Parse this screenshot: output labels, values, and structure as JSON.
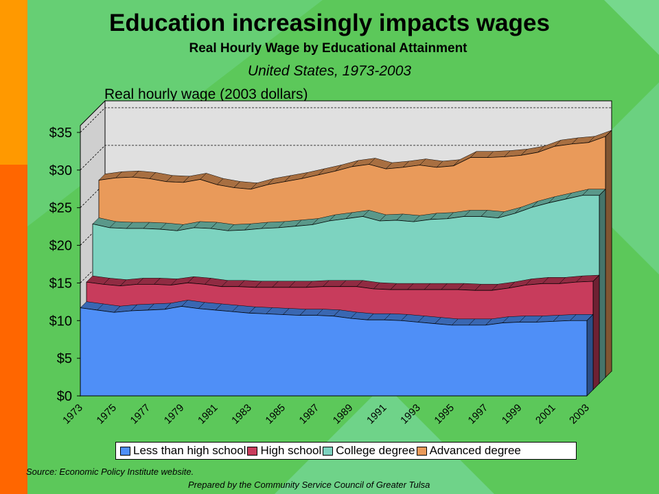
{
  "slide": {
    "title": "Education increasingly impacts wages",
    "subtitle": "Real Hourly Wage by Educational Attainment",
    "region": "United States, 1973-2003",
    "source": "Source:  Economic Policy Institute website.",
    "credit": "Prepared by the Community Service Council of Greater Tulsa"
  },
  "colors": {
    "bg_green": "#5cc85a",
    "accent_orange": "#ff9900",
    "accent_red_orange": "#ff6600",
    "less_than_hs": "#4f8ff7",
    "high_school": "#c83c5c",
    "college": "#7dd3c0",
    "advanced": "#e99a5a",
    "plot_bg": "#e0e0e0"
  },
  "chart_data": {
    "type": "area",
    "title": "",
    "ylabel": "Real hourly wage (2003 dollars)",
    "stacked": false,
    "style": "3d-depth",
    "ylim": [
      0,
      35
    ],
    "yticks": [
      "$0",
      "$5",
      "$10",
      "$15",
      "$20",
      "$25",
      "$30",
      "$35"
    ],
    "x": [
      1973,
      1974,
      1975,
      1976,
      1977,
      1978,
      1979,
      1980,
      1981,
      1982,
      1983,
      1984,
      1985,
      1986,
      1987,
      1988,
      1989,
      1990,
      1991,
      1992,
      1993,
      1994,
      1995,
      1996,
      1997,
      1998,
      1999,
      2000,
      2001,
      2002,
      2003
    ],
    "xtick_labels": [
      "1973",
      "1975",
      "1977",
      "1979",
      "1981",
      "1983",
      "1985",
      "1987",
      "1989",
      "1991",
      "1993",
      "1995",
      "1997",
      "1999",
      "2001",
      "2003"
    ],
    "grid": true,
    "legend_position": "bottom",
    "series": [
      {
        "name": "Less than high school",
        "color": "#4f8ff7",
        "values": [
          11.7,
          11.4,
          11.1,
          11.3,
          11.4,
          11.5,
          11.9,
          11.6,
          11.4,
          11.2,
          11.0,
          10.9,
          10.8,
          10.7,
          10.7,
          10.6,
          10.3,
          10.1,
          10.1,
          10.0,
          9.8,
          9.6,
          9.4,
          9.4,
          9.4,
          9.7,
          9.8,
          9.8,
          9.9,
          10.0,
          10.0
        ]
      },
      {
        "name": "High school",
        "color": "#c83c5c",
        "values": [
          14.3,
          14.0,
          13.8,
          14.0,
          14.0,
          13.9,
          14.2,
          14.0,
          13.7,
          13.7,
          13.6,
          13.6,
          13.6,
          13.6,
          13.7,
          13.7,
          13.7,
          13.4,
          13.3,
          13.3,
          13.3,
          13.3,
          13.3,
          13.2,
          13.2,
          13.5,
          13.9,
          14.1,
          14.1,
          14.3,
          14.4
        ]
      },
      {
        "name": "College degree",
        "color": "#7dd3c0",
        "values": [
          21.2,
          20.7,
          20.6,
          20.6,
          20.5,
          20.3,
          20.7,
          20.6,
          20.3,
          20.4,
          20.6,
          20.7,
          20.9,
          21.1,
          21.6,
          21.9,
          22.2,
          21.6,
          21.7,
          21.5,
          21.8,
          21.9,
          22.2,
          22.2,
          22.0,
          22.6,
          23.4,
          24.0,
          24.5,
          25.0,
          25.0
        ]
      },
      {
        "name": "Advanced degree",
        "color": "#e99a5a",
        "values": [
          26.2,
          26.5,
          26.6,
          26.4,
          26.0,
          25.9,
          26.3,
          25.6,
          25.2,
          25.0,
          25.6,
          26.0,
          26.4,
          26.9,
          27.4,
          28.0,
          28.3,
          27.7,
          27.9,
          28.2,
          27.9,
          28.1,
          29.2,
          29.2,
          29.3,
          29.5,
          29.9,
          30.7,
          31.0,
          31.2,
          32.0
        ]
      }
    ]
  }
}
